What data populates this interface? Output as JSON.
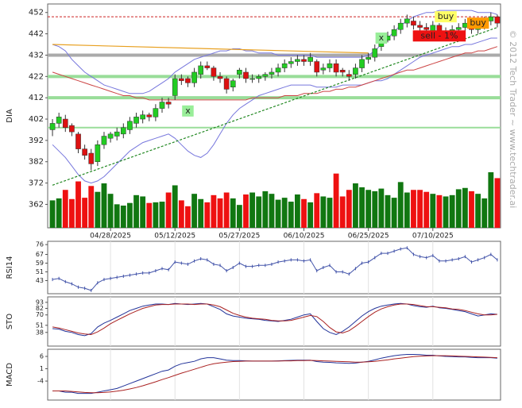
{
  "watermark": "© 2012 Tech Trader ~ www.techtrader.ai",
  "chart_data": [
    {
      "type": "candlestick",
      "ylabel": "DIA",
      "categories": [
        null,
        null,
        null,
        null,
        null,
        null,
        null,
        null,
        null,
        "04/28/2025",
        null,
        null,
        null,
        null,
        null,
        null,
        null,
        null,
        null,
        "05/12/2025",
        null,
        null,
        null,
        null,
        null,
        null,
        null,
        null,
        null,
        "05/27/2025",
        null,
        null,
        null,
        null,
        null,
        null,
        null,
        null,
        null,
        "06/10/2025",
        null,
        null,
        null,
        null,
        null,
        null,
        null,
        null,
        null,
        "06/25/2025",
        null,
        null,
        null,
        null,
        null,
        null,
        null,
        null,
        null,
        "07/10/2025",
        null,
        null,
        null,
        null,
        null,
        null,
        null,
        null,
        null,
        null
      ],
      "open": [
        397,
        400,
        402,
        399,
        395,
        388,
        386,
        382,
        390,
        393,
        394,
        395,
        397,
        400,
        402,
        404,
        403,
        407,
        410,
        413,
        421,
        421,
        419,
        423,
        427,
        426,
        422,
        421,
        417,
        423,
        424,
        421,
        421,
        422,
        423,
        424,
        426,
        428,
        429,
        430,
        429,
        429,
        425,
        426,
        428,
        425,
        423,
        423,
        426,
        430,
        431,
        436,
        439,
        441,
        444,
        447,
        448,
        446,
        445,
        443,
        446,
        442,
        443,
        444,
        445,
        447,
        444,
        446,
        448,
        450
      ],
      "high": [
        402,
        405,
        404,
        400,
        396,
        390,
        388,
        392,
        396,
        396,
        398,
        400,
        403,
        405,
        406,
        405,
        409,
        412,
        412,
        423,
        423,
        422,
        426,
        429,
        429,
        427,
        424,
        422,
        421,
        426,
        426,
        423,
        423,
        424,
        426,
        428,
        430,
        431,
        432,
        432,
        433,
        430,
        428,
        430,
        430,
        426,
        425,
        428,
        432,
        433,
        437,
        442,
        443,
        446,
        449,
        451,
        450,
        448,
        447,
        448,
        447,
        445,
        446,
        447,
        449,
        448,
        448,
        450,
        452,
        451
      ],
      "low": [
        394,
        398,
        396,
        394,
        386,
        383,
        378,
        380,
        388,
        391,
        392,
        393,
        395,
        398,
        400,
        401,
        401,
        405,
        407,
        411,
        418,
        417,
        417,
        421,
        425,
        420,
        419,
        414,
        415,
        421,
        419,
        419,
        419,
        420,
        421,
        422,
        424,
        426,
        427,
        427,
        427,
        422,
        423,
        424,
        422,
        422,
        420,
        421,
        424,
        428,
        429,
        434,
        438,
        439,
        442,
        445,
        444,
        443,
        442,
        441,
        441,
        440,
        441,
        442,
        443,
        442,
        442,
        444,
        446,
        445
      ],
      "close": [
        400,
        403,
        398,
        396,
        388,
        385,
        381,
        390,
        394,
        395,
        396,
        398,
        401,
        403,
        404,
        403,
        407,
        410,
        409,
        421,
        420,
        419,
        424,
        427,
        426,
        422,
        421,
        416,
        420,
        425,
        421,
        421,
        422,
        423,
        424,
        426,
        428,
        429,
        430,
        429,
        431,
        424,
        426,
        428,
        424,
        424,
        422,
        426,
        430,
        431,
        435,
        440,
        441,
        444,
        447,
        449,
        446,
        445,
        444,
        446,
        443,
        443,
        444,
        445,
        447,
        444,
        446,
        448,
        450,
        447
      ],
      "up_color": "#22cc22",
      "down_color": "#dd1111",
      "volume": {
        "up_color": "#117711",
        "down_color": "#ee1111",
        "values": [
          4.2,
          4.5,
          5.8,
          4.4,
          7.1,
          4.6,
          6.4,
          5.5,
          6.8,
          5.2,
          3.6,
          3.4,
          3.8,
          5.0,
          4.8,
          3.8,
          3.9,
          4.0,
          5.4,
          6.5,
          4.2,
          3.3,
          5.2,
          4.4,
          3.9,
          5.0,
          4.5,
          5.4,
          4.5,
          3.5,
          5.1,
          5.4,
          4.8,
          5.6,
          5.2,
          4.3,
          4.6,
          4.0,
          5.1,
          4.4,
          3.9,
          5.3,
          4.8,
          4.6,
          8.3,
          4.8,
          5.8,
          6.8,
          6.2,
          5.8,
          5.6,
          6.0,
          5.0,
          4.6,
          7.0,
          5.4,
          5.8,
          5.8,
          5.5,
          5.2,
          5.0,
          4.8,
          5.0,
          5.9,
          6.1,
          5.6,
          5.2,
          4.5,
          8.5,
          7.6
        ]
      },
      "overlays": [
        {
          "color": "#7777dd",
          "values": [
            437,
            436,
            434,
            430,
            427,
            424,
            422,
            420,
            418,
            417,
            416,
            415,
            414,
            414,
            414,
            415,
            417,
            419,
            421,
            424,
            426,
            428,
            430,
            431,
            432,
            433,
            434,
            434,
            435,
            435,
            434,
            434,
            433,
            433,
            433,
            432,
            432,
            432,
            432,
            432,
            432,
            431,
            431,
            431,
            431,
            431,
            431,
            431,
            431,
            432,
            434,
            437,
            440,
            443,
            446,
            448,
            450,
            451,
            452,
            452,
            453,
            453,
            453,
            453,
            453,
            453,
            452,
            452,
            452,
            451
          ]
        },
        {
          "color": "#7777dd",
          "values": [
            390,
            387,
            384,
            380,
            376,
            373,
            372,
            373,
            375,
            378,
            381,
            384,
            387,
            389,
            391,
            392,
            393,
            394,
            395,
            393,
            390,
            387,
            385,
            384,
            386,
            390,
            395,
            400,
            404,
            407,
            409,
            411,
            413,
            414,
            415,
            416,
            417,
            418,
            418,
            418,
            418,
            417,
            417,
            417,
            417,
            418,
            418,
            418,
            418,
            419,
            420,
            420,
            421,
            423,
            425,
            427,
            429,
            431,
            432,
            433,
            434,
            435,
            436,
            436,
            437,
            437,
            438,
            439,
            440,
            440
          ]
        },
        {
          "color": "#cc4444",
          "values": [
            424,
            423,
            422,
            421,
            420,
            419,
            418,
            417,
            416,
            415,
            414,
            413,
            413,
            412,
            412,
            411,
            411,
            411,
            411,
            411,
            411,
            411,
            411,
            411,
            411,
            411,
            411,
            411,
            411,
            411,
            411,
            412,
            412,
            412,
            412,
            412,
            413,
            413,
            413,
            414,
            414,
            414,
            415,
            415,
            416,
            416,
            417,
            417,
            418,
            419,
            420,
            421,
            422,
            423,
            424,
            425,
            425,
            426,
            427,
            428,
            429,
            430,
            431,
            432,
            433,
            433,
            434,
            434,
            435,
            436
          ]
        }
      ],
      "levels": [
        {
          "value": 450,
          "color": "#cc2222",
          "dash": true
        },
        {
          "value": 432,
          "color": "#aaaaaa",
          "width": 4
        },
        {
          "value": 422,
          "color": "#99dd99",
          "width": 4
        },
        {
          "value": 412,
          "color": "#99dd99",
          "width": 4
        },
        {
          "value": 398,
          "color": "#99dd99",
          "width": 2
        }
      ],
      "trendlines": [
        {
          "from": [
            0,
            437
          ],
          "to": [
            49,
            433
          ],
          "color": "#e8a020",
          "dash": false
        },
        {
          "from": [
            0,
            371
          ],
          "to": [
            69,
            445
          ],
          "color": "#228822",
          "dash": true
        }
      ],
      "annotations": [
        {
          "text": "x",
          "at": 21,
          "value": 405.8,
          "color": "#99ee99"
        },
        {
          "text": "x",
          "at": 51,
          "value": 440,
          "color": "#99ee99"
        },
        {
          "text": "sell - 1%",
          "at": 60,
          "value": 441,
          "color": "#ee1111"
        },
        {
          "text": "buy",
          "at": 61,
          "value": 450,
          "color": "#ffff66"
        },
        {
          "text": "buy",
          "at": 66,
          "value": 447,
          "color": "#ff9900"
        }
      ],
      "ylim": [
        351,
        456
      ],
      "yticks": [
        452,
        442,
        432,
        422,
        412,
        402,
        392,
        382,
        372,
        362
      ]
    },
    {
      "type": "line",
      "ylabel": "RSI14",
      "ylim": [
        31,
        79
      ],
      "yticks": [
        76,
        67,
        59,
        51,
        43
      ],
      "series": [
        {
          "color": "#4455aa",
          "values": [
            44,
            45,
            42,
            40,
            37,
            36,
            34,
            41,
            44,
            45,
            46,
            47,
            48,
            49,
            50,
            50,
            52,
            54,
            53,
            60,
            59,
            58,
            61,
            63,
            62,
            58,
            57,
            52,
            55,
            59,
            56,
            56,
            57,
            57,
            58,
            60,
            61,
            62,
            62,
            61,
            62,
            52,
            55,
            57,
            51,
            51,
            49,
            54,
            59,
            60,
            64,
            68,
            68,
            70,
            72,
            73,
            67,
            65,
            64,
            66,
            61,
            61,
            62,
            63,
            65,
            60,
            62,
            64,
            67,
            62
          ]
        }
      ]
    },
    {
      "type": "line",
      "ylabel": "STO",
      "ylim": [
        13,
        103
      ],
      "yticks": [
        93,
        82,
        70,
        51,
        38
      ],
      "series": [
        {
          "color": "#223399",
          "values": [
            45,
            44,
            40,
            38,
            34,
            32,
            36,
            48,
            55,
            60,
            66,
            72,
            78,
            82,
            86,
            88,
            90,
            90,
            89,
            91,
            90,
            89,
            90,
            91,
            90,
            85,
            80,
            72,
            68,
            66,
            64,
            63,
            62,
            60,
            59,
            58,
            60,
            62,
            66,
            70,
            72,
            58,
            45,
            38,
            34,
            40,
            48,
            58,
            68,
            76,
            82,
            86,
            88,
            90,
            91,
            90,
            87,
            85,
            84,
            86,
            83,
            82,
            80,
            78,
            76,
            72,
            68,
            70,
            72,
            71
          ]
        },
        {
          "color": "#aa2222",
          "values": [
            48,
            46,
            43,
            40,
            37,
            35,
            34,
            39,
            46,
            54,
            60,
            66,
            72,
            77,
            82,
            85,
            88,
            89,
            89,
            90,
            90,
            90,
            89,
            90,
            90,
            88,
            85,
            79,
            73,
            69,
            66,
            64,
            63,
            62,
            60,
            59,
            59,
            60,
            63,
            66,
            69,
            67,
            58,
            47,
            39,
            37,
            41,
            49,
            58,
            67,
            75,
            81,
            85,
            88,
            90,
            90,
            89,
            87,
            85,
            85,
            84,
            83,
            81,
            80,
            78,
            75,
            72,
            70,
            70,
            71
          ]
        }
      ]
    },
    {
      "type": "line",
      "ylabel": "MACD",
      "ylim": [
        -11.7,
        8.9
      ],
      "yticks": [
        6,
        1,
        -4
      ],
      "series": [
        {
          "color": "#223399",
          "values": [
            -8,
            -8,
            -8.5,
            -8.5,
            -9,
            -9,
            -9,
            -8.5,
            -8,
            -7.5,
            -7,
            -6,
            -5,
            -4,
            -3,
            -2,
            -1,
            0,
            0.5,
            2,
            3,
            3.5,
            4,
            5,
            5.5,
            5.5,
            5,
            4.5,
            4.3,
            4.3,
            4.2,
            4.1,
            4.1,
            4.1,
            4.1,
            4.2,
            4.3,
            4.4,
            4.5,
            4.5,
            4.5,
            3.9,
            3.7,
            3.6,
            3.4,
            3.3,
            3.2,
            3.3,
            3.7,
            4,
            4.6,
            5.3,
            5.8,
            6.3,
            6.6,
            6.8,
            6.8,
            6.7,
            6.5,
            6.5,
            6.2,
            6,
            5.9,
            5.8,
            5.8,
            5.6,
            5.5,
            5.5,
            5.5,
            5.3
          ]
        },
        {
          "color": "#aa2222",
          "values": [
            -8,
            -8,
            -8,
            -8.2,
            -8.4,
            -8.6,
            -8.7,
            -8.7,
            -8.6,
            -8.4,
            -8.1,
            -7.7,
            -7.2,
            -6.6,
            -5.9,
            -5.1,
            -4.3,
            -3.4,
            -2.6,
            -1.7,
            -0.8,
            0,
            0.8,
            1.6,
            2.4,
            3,
            3.4,
            3.7,
            3.9,
            4,
            4.1,
            4.1,
            4.1,
            4.1,
            4.1,
            4.1,
            4.2,
            4.2,
            4.3,
            4.3,
            4.4,
            4.3,
            4.2,
            4.1,
            4,
            3.9,
            3.8,
            3.7,
            3.7,
            3.8,
            4,
            4.3,
            4.6,
            5,
            5.3,
            5.6,
            5.9,
            6.1,
            6.2,
            6.3,
            6.3,
            6.3,
            6.2,
            6.1,
            6,
            5.9,
            5.8,
            5.7,
            5.6,
            5.5
          ]
        }
      ]
    }
  ]
}
